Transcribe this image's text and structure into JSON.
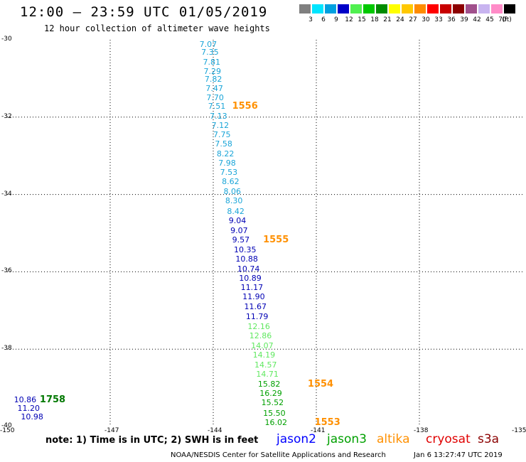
{
  "header": {
    "title": "12:00 — 23:59 UTC 01/05/2019",
    "subtitle": "12 hour collection of altimeter wave heights"
  },
  "color_scale": {
    "unit": "(ft)",
    "items": [
      {
        "label": "3",
        "color": "#808080"
      },
      {
        "label": "6",
        "color": "#00e5ff"
      },
      {
        "label": "9",
        "color": "#00a0e0"
      },
      {
        "label": "12",
        "color": "#0000c8"
      },
      {
        "label": "15",
        "color": "#50f050"
      },
      {
        "label": "18",
        "color": "#00c800"
      },
      {
        "label": "21",
        "color": "#008c00"
      },
      {
        "label": "24",
        "color": "#ffff00"
      },
      {
        "label": "27",
        "color": "#ffc800"
      },
      {
        "label": "30",
        "color": "#ff8c00"
      },
      {
        "label": "33",
        "color": "#ff0000"
      },
      {
        "label": "36",
        "color": "#c80000"
      },
      {
        "label": "39",
        "color": "#8c0000"
      },
      {
        "label": "42",
        "color": "#a0508c"
      },
      {
        "label": "45",
        "color": "#c8b4f0"
      },
      {
        "label": "70",
        "color": "#ff8cc8"
      },
      {
        "label": "",
        "color": "#000000"
      }
    ]
  },
  "axes": {
    "lat_labels": [
      "-30",
      "-32",
      "-34",
      "-36",
      "-38",
      "-40"
    ],
    "lon_labels": [
      "-150",
      "-147",
      "-144",
      "-141",
      "-138",
      "-135"
    ]
  },
  "observations": [
    {
      "v": "7.07",
      "c": "#1aa5d8",
      "lon": -144.4,
      "lat": -30.12
    },
    {
      "v": "7.35",
      "c": "#1aa5d8",
      "lon": -144.35,
      "lat": -30.34
    },
    {
      "v": "7.81",
      "c": "#1aa5d8",
      "lon": -144.3,
      "lat": -30.58
    },
    {
      "v": "7.29",
      "c": "#1aa5d8",
      "lon": -144.28,
      "lat": -30.82
    },
    {
      "v": "7.82",
      "c": "#1aa5d8",
      "lon": -144.25,
      "lat": -31.03
    },
    {
      "v": "7.47",
      "c": "#1aa5d8",
      "lon": -144.22,
      "lat": -31.26
    },
    {
      "v": "7.70",
      "c": "#1aa5d8",
      "lon": -144.2,
      "lat": -31.5
    },
    {
      "v": "7.51",
      "c": "#1aa5d8",
      "lon": -144.15,
      "lat": -31.73
    },
    {
      "v": "7.13",
      "c": "#1aa5d8",
      "lon": -144.1,
      "lat": -31.98
    },
    {
      "v": "7.12",
      "c": "#1aa5d8",
      "lon": -144.05,
      "lat": -32.22
    },
    {
      "v": "7.75",
      "c": "#1aa5d8",
      "lon": -144.0,
      "lat": -32.46
    },
    {
      "v": "7.58",
      "c": "#1aa5d8",
      "lon": -143.95,
      "lat": -32.7
    },
    {
      "v": "8.22",
      "c": "#1aa5d8",
      "lon": -143.9,
      "lat": -32.96
    },
    {
      "v": "7.98",
      "c": "#1aa5d8",
      "lon": -143.85,
      "lat": -33.2
    },
    {
      "v": "7.53",
      "c": "#1aa5d8",
      "lon": -143.8,
      "lat": -33.44
    },
    {
      "v": "8.62",
      "c": "#1aa5d8",
      "lon": -143.75,
      "lat": -33.68
    },
    {
      "v": "8.06",
      "c": "#1aa5d8",
      "lon": -143.7,
      "lat": -33.94
    },
    {
      "v": "8.30",
      "c": "#1aa5d8",
      "lon": -143.65,
      "lat": -34.18
    },
    {
      "v": "8.42",
      "c": "#1aa5d8",
      "lon": -143.6,
      "lat": -34.44
    },
    {
      "v": "9.04",
      "c": "#0000b4",
      "lon": -143.55,
      "lat": -34.68
    },
    {
      "v": "9.07",
      "c": "#0000b4",
      "lon": -143.5,
      "lat": -34.94
    },
    {
      "v": "9.57",
      "c": "#0000b4",
      "lon": -143.45,
      "lat": -35.18
    },
    {
      "v": "10.35",
      "c": "#0000b4",
      "lon": -143.4,
      "lat": -35.44
    },
    {
      "v": "10.88",
      "c": "#0000b4",
      "lon": -143.35,
      "lat": -35.68
    },
    {
      "v": "10.74",
      "c": "#0000b4",
      "lon": -143.3,
      "lat": -35.94
    },
    {
      "v": "10.89",
      "c": "#0000b4",
      "lon": -143.25,
      "lat": -36.18
    },
    {
      "v": "11.17",
      "c": "#0000b4",
      "lon": -143.2,
      "lat": -36.42
    },
    {
      "v": "11.90",
      "c": "#0000b4",
      "lon": -143.15,
      "lat": -36.66
    },
    {
      "v": "11.67",
      "c": "#0000b4",
      "lon": -143.1,
      "lat": -36.92
    },
    {
      "v": "11.79",
      "c": "#0000b4",
      "lon": -143.05,
      "lat": -37.16
    },
    {
      "v": "12.16",
      "c": "#60e860",
      "lon": -143.0,
      "lat": -37.42
    },
    {
      "v": "12.86",
      "c": "#60e860",
      "lon": -142.95,
      "lat": -37.66
    },
    {
      "v": "14.07",
      "c": "#60e860",
      "lon": -142.9,
      "lat": -37.92
    },
    {
      "v": "14.19",
      "c": "#60e860",
      "lon": -142.85,
      "lat": -38.16
    },
    {
      "v": "14.57",
      "c": "#60e860",
      "lon": -142.8,
      "lat": -38.42
    },
    {
      "v": "14.71",
      "c": "#60e860",
      "lon": -142.75,
      "lat": -38.66
    },
    {
      "v": "15.82",
      "c": "#00a000",
      "lon": -142.7,
      "lat": -38.92
    },
    {
      "v": "16.29",
      "c": "#00a000",
      "lon": -142.65,
      "lat": -39.16
    },
    {
      "v": "15.52",
      "c": "#00a000",
      "lon": -142.6,
      "lat": -39.4
    },
    {
      "v": "15.50",
      "c": "#00a000",
      "lon": -142.55,
      "lat": -39.66
    },
    {
      "v": "16.02",
      "c": "#00a000",
      "lon": -142.5,
      "lat": -39.9
    },
    {
      "v": "10.86",
      "c": "#0000b4",
      "lon": -149.8,
      "lat": -39.32
    },
    {
      "v": "11.20",
      "c": "#0000b4",
      "lon": -149.7,
      "lat": -39.54
    },
    {
      "v": "10.98",
      "c": "#0000b4",
      "lon": -149.6,
      "lat": -39.76
    }
  ],
  "times": [
    {
      "t": "1556",
      "c": "#ff9000",
      "lon": -143.45,
      "lat": -31.73
    },
    {
      "t": "1555",
      "c": "#ff9000",
      "lon": -142.55,
      "lat": -35.18
    },
    {
      "t": "1554",
      "c": "#ff9000",
      "lon": -141.25,
      "lat": -38.92
    },
    {
      "t": "1553",
      "c": "#ff9000",
      "lon": -141.05,
      "lat": -39.9
    },
    {
      "t": "1758",
      "c": "#007800",
      "lon": -149.05,
      "lat": -39.32
    }
  ],
  "footer": {
    "note": "note:  1) Time is in UTC;  2) SWH is in feet",
    "satellites": [
      {
        "name": "jason2",
        "color": "#0000ff"
      },
      {
        "name": "jason3",
        "color": "#00a000"
      },
      {
        "name": "altika",
        "color": "#ff9000"
      },
      {
        "name": "cryosat",
        "color": "#e00000"
      },
      {
        "name": "s3a",
        "color": "#8b0000"
      }
    ],
    "credit": "NOAA/NESDIS Center for Satellite Applications and Research",
    "timestamp": "Jan  6 13:27:47 UTC 2019"
  }
}
